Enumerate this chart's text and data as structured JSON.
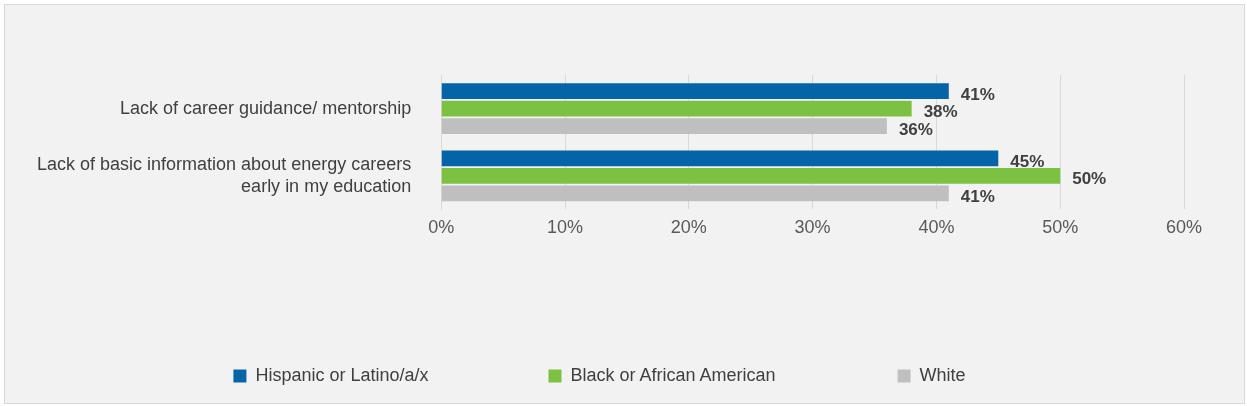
{
  "chart_data": {
    "type": "bar",
    "orientation": "horizontal",
    "categories": [
      "Lack of career guidance/ mentorship",
      "Lack of basic information about energy careers early in my education"
    ],
    "series": [
      {
        "name": "Hispanic or Latino/a/x",
        "color": "#0563a8",
        "values": [
          41,
          45
        ],
        "value_labels": [
          "41%",
          "45%"
        ]
      },
      {
        "name": "Black or African American",
        "color": "#7dc142",
        "values": [
          38,
          50
        ],
        "value_labels": [
          "38%",
          "50%"
        ]
      },
      {
        "name": "White",
        "color": "#bfbfbf",
        "values": [
          36,
          41
        ],
        "value_labels": [
          "36%",
          "41%"
        ]
      }
    ],
    "xlim": [
      0,
      60
    ],
    "xticks": [
      {
        "value": 0,
        "label": "0%"
      },
      {
        "value": 10,
        "label": "10%"
      },
      {
        "value": 20,
        "label": "20%"
      },
      {
        "value": 30,
        "label": "30%"
      },
      {
        "value": 40,
        "label": "40%"
      },
      {
        "value": 50,
        "label": "50%"
      },
      {
        "value": 60,
        "label": "60%"
      }
    ],
    "grid": "x",
    "legend": "bottom"
  }
}
